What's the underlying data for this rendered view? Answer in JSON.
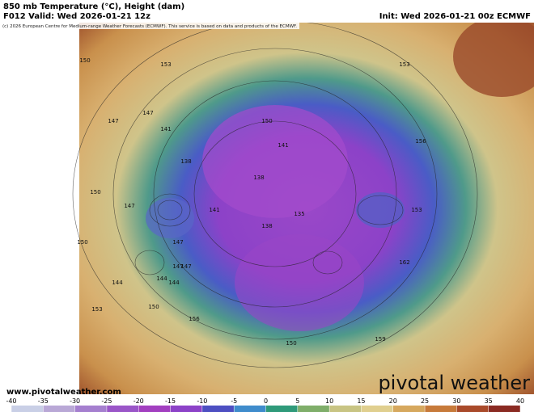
{
  "header": {
    "title": "850 mb Temperature (°C), Height (dam)",
    "valid": "F012 Valid: Wed 2026-01-21 12z",
    "init": "Init: Wed 2026-01-21 00z ECMWF",
    "credit": "(c) 2026 European Centre for Medium-range Weather Forecasts (ECMWF). This service is based on data and products of the ECMWF."
  },
  "map": {
    "contour_labels": [
      "150",
      "153",
      "147",
      "150",
      "147",
      "141",
      "138",
      "147",
      "150",
      "141",
      "138",
      "135",
      "144",
      "147",
      "141",
      "138",
      "150",
      "153",
      "156",
      "162",
      "144",
      "147",
      "150",
      "153",
      "156",
      "159",
      "153",
      "150",
      "144",
      "147"
    ]
  },
  "footer": {
    "site": "www.pivotalweather.com",
    "brand": "pivotal weather"
  },
  "colorbar": {
    "ticks": [
      -40,
      -35,
      -30,
      -25,
      -20,
      -15,
      -10,
      -5,
      0,
      5,
      10,
      15,
      20,
      25,
      30,
      35,
      40
    ],
    "colors": [
      "#c9cfe6",
      "#b9a8d6",
      "#a57fcf",
      "#9a56c8",
      "#a23fc0",
      "#8c42c8",
      "#4d4fc2",
      "#3f8ccc",
      "#2f9a7a",
      "#7fae6a",
      "#c8c483",
      "#e0cf8f",
      "#d6a85e",
      "#c77a3a",
      "#a94a2a",
      "#8a2a22"
    ]
  }
}
